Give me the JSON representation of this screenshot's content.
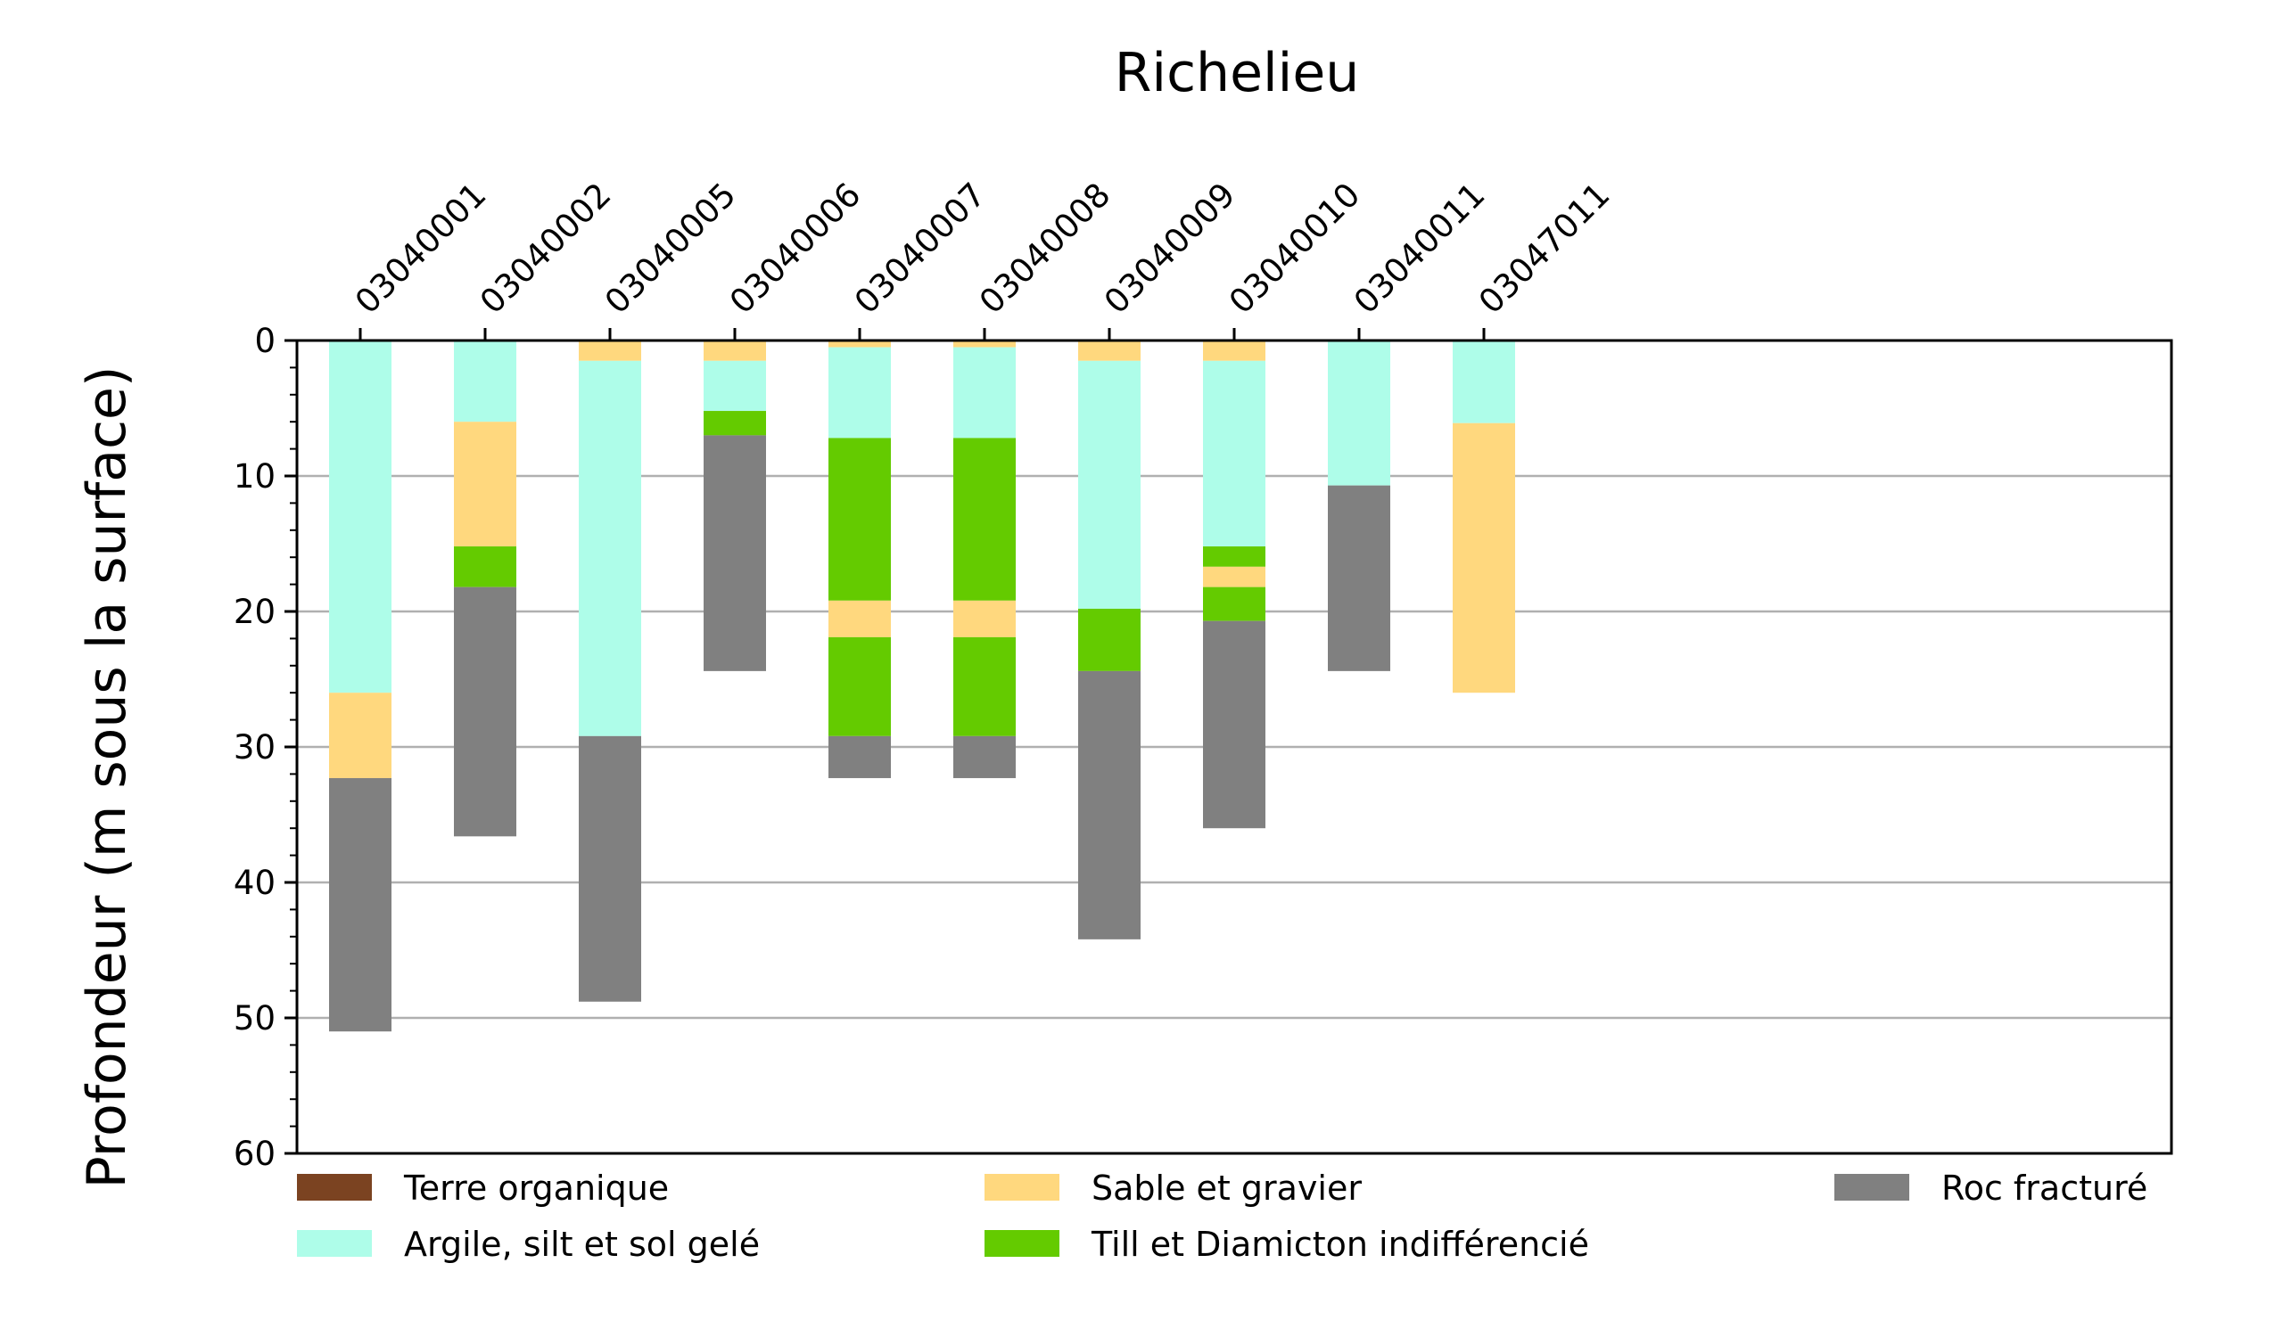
{
  "chart_data": {
    "type": "bar",
    "stacked": true,
    "title": "Richelieu",
    "ylabel": "Profondeur (m sous la surface)",
    "xlabel": "",
    "ylim": [
      0,
      60
    ],
    "y_inverted": true,
    "y_ticks": [
      0,
      10,
      20,
      30,
      40,
      50,
      60
    ],
    "x_tick_position": "top",
    "grid": "horizontal",
    "legend_placement": "bottom",
    "categories": [
      "03040001",
      "03040002",
      "03040005",
      "03040006",
      "03040007",
      "03040008",
      "03040009",
      "03040010",
      "03040011",
      "03047011"
    ],
    "legend": [
      {
        "key": "terre",
        "label": "Terre organique",
        "color": "#7b4321"
      },
      {
        "key": "sable",
        "label": "Sable et gravier",
        "color": "#ffd87e"
      },
      {
        "key": "roc",
        "label": "Roc fracturé",
        "color": "#808080"
      },
      {
        "key": "argile",
        "label": "Argile, silt et sol gelé",
        "color": "#aefde9"
      },
      {
        "key": "till",
        "label": "Till et Diamicton indifférencié",
        "color": "#64cb00"
      }
    ],
    "wells": [
      {
        "id": "03040001",
        "layers": [
          {
            "type": "argile",
            "top": 0,
            "bottom": 26
          },
          {
            "type": "sable",
            "top": 26,
            "bottom": 32.3
          },
          {
            "type": "roc",
            "top": 32.3,
            "bottom": 51
          }
        ]
      },
      {
        "id": "03040002",
        "layers": [
          {
            "type": "argile",
            "top": 0,
            "bottom": 6
          },
          {
            "type": "sable",
            "top": 6,
            "bottom": 15.2
          },
          {
            "type": "till",
            "top": 15.2,
            "bottom": 18.2
          },
          {
            "type": "roc",
            "top": 18.2,
            "bottom": 36.6
          }
        ]
      },
      {
        "id": "03040005",
        "layers": [
          {
            "type": "sable",
            "top": 0,
            "bottom": 1.5
          },
          {
            "type": "argile",
            "top": 1.5,
            "bottom": 29.2
          },
          {
            "type": "roc",
            "top": 29.2,
            "bottom": 48.8
          }
        ]
      },
      {
        "id": "03040006",
        "layers": [
          {
            "type": "sable",
            "top": 0,
            "bottom": 1.5
          },
          {
            "type": "argile",
            "top": 1.5,
            "bottom": 5.2
          },
          {
            "type": "till",
            "top": 5.2,
            "bottom": 7
          },
          {
            "type": "roc",
            "top": 7,
            "bottom": 24.4
          }
        ]
      },
      {
        "id": "03040007",
        "layers": [
          {
            "type": "sable",
            "top": 0,
            "bottom": 0.5
          },
          {
            "type": "argile",
            "top": 0.5,
            "bottom": 7.2
          },
          {
            "type": "till",
            "top": 7.2,
            "bottom": 19.2
          },
          {
            "type": "sable",
            "top": 19.2,
            "bottom": 21.9
          },
          {
            "type": "till",
            "top": 21.9,
            "bottom": 29.2
          },
          {
            "type": "roc",
            "top": 29.2,
            "bottom": 32.3
          }
        ]
      },
      {
        "id": "03040008",
        "layers": [
          {
            "type": "sable",
            "top": 0,
            "bottom": 0.5
          },
          {
            "type": "argile",
            "top": 0.5,
            "bottom": 7.2
          },
          {
            "type": "till",
            "top": 7.2,
            "bottom": 19.2
          },
          {
            "type": "sable",
            "top": 19.2,
            "bottom": 21.9
          },
          {
            "type": "till",
            "top": 21.9,
            "bottom": 29.2
          },
          {
            "type": "roc",
            "top": 29.2,
            "bottom": 32.3
          }
        ]
      },
      {
        "id": "03040009",
        "layers": [
          {
            "type": "sable",
            "top": 0,
            "bottom": 1.5
          },
          {
            "type": "argile",
            "top": 1.5,
            "bottom": 19.8
          },
          {
            "type": "till",
            "top": 19.8,
            "bottom": 24.4
          },
          {
            "type": "roc",
            "top": 24.4,
            "bottom": 44.2
          }
        ]
      },
      {
        "id": "03040010",
        "layers": [
          {
            "type": "sable",
            "top": 0,
            "bottom": 1.5
          },
          {
            "type": "argile",
            "top": 1.5,
            "bottom": 15.2
          },
          {
            "type": "till",
            "top": 15.2,
            "bottom": 16.7
          },
          {
            "type": "sable",
            "top": 16.7,
            "bottom": 18.2
          },
          {
            "type": "till",
            "top": 18.2,
            "bottom": 20.7
          },
          {
            "type": "roc",
            "top": 20.7,
            "bottom": 36
          }
        ]
      },
      {
        "id": "03040011",
        "layers": [
          {
            "type": "argile",
            "top": 0,
            "bottom": 10.7
          },
          {
            "type": "roc",
            "top": 10.7,
            "bottom": 24.4
          }
        ]
      },
      {
        "id": "03047011",
        "layers": [
          {
            "type": "argile",
            "top": 0,
            "bottom": 6.1
          },
          {
            "type": "sable",
            "top": 6.1,
            "bottom": 26
          }
        ]
      }
    ]
  }
}
